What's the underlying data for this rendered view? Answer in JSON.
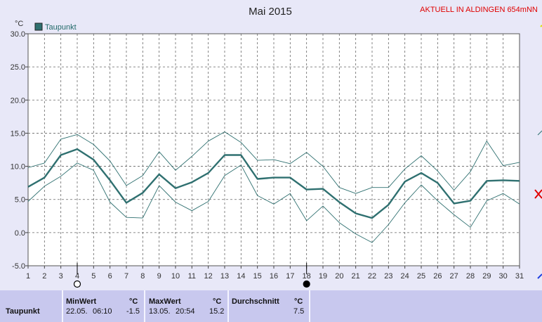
{
  "chart_data": {
    "type": "line",
    "title": "Mai 2015",
    "station": "AKTUELL IN ALDINGEN 654mNN",
    "ylabel": "°C",
    "ylim": [
      -5,
      30
    ],
    "yticks": [
      "30.0",
      "25.0",
      "20.0",
      "15.0",
      "10.0",
      "5.0",
      "0.0",
      "-5.0"
    ],
    "x": [
      1,
      2,
      3,
      4,
      5,
      6,
      7,
      8,
      9,
      10,
      11,
      12,
      13,
      14,
      15,
      16,
      17,
      18,
      19,
      20,
      21,
      22,
      23,
      24,
      25,
      26,
      27,
      28,
      29,
      30,
      31
    ],
    "grid": true,
    "legend_position": "top-left",
    "series": [
      {
        "name": "Taupunkt",
        "role": "mean",
        "color": "#2f7070",
        "values": [
          6.9,
          8.3,
          11.7,
          12.6,
          11.0,
          7.9,
          4.5,
          6.0,
          8.8,
          6.7,
          7.6,
          9.0,
          11.7,
          11.7,
          8.1,
          8.3,
          8.3,
          6.5,
          6.6,
          4.6,
          2.9,
          2.2,
          4.2,
          7.7,
          9.0,
          7.5,
          4.4,
          4.8,
          7.8,
          7.9,
          7.8
        ]
      },
      {
        "role": "max",
        "color": "#2f7070",
        "values": [
          9.8,
          10.5,
          14.1,
          14.8,
          13.3,
          10.8,
          7.1,
          8.6,
          12.2,
          9.4,
          11.5,
          13.8,
          15.2,
          13.6,
          10.9,
          11.0,
          10.4,
          12.1,
          10.0,
          6.8,
          5.9,
          6.8,
          6.8,
          9.6,
          11.6,
          9.3,
          6.4,
          9.2,
          13.8,
          10.1,
          10.6
        ]
      },
      {
        "role": "min",
        "color": "#2f7070",
        "values": [
          4.7,
          7.0,
          8.5,
          10.5,
          9.4,
          4.6,
          2.3,
          2.2,
          7.1,
          4.6,
          3.3,
          4.7,
          8.6,
          10.2,
          5.6,
          4.3,
          5.9,
          1.8,
          4.0,
          1.5,
          -0.2,
          -1.5,
          1.2,
          4.5,
          7.2,
          4.8,
          2.7,
          0.8,
          4.8,
          5.9,
          4.3
        ]
      }
    ],
    "moon_markers": [
      {
        "day": 4,
        "phase": "full"
      },
      {
        "day": 18,
        "phase": "new"
      }
    ]
  },
  "stats": {
    "row_label": "Taupunkt",
    "min_label": "MinWert",
    "max_label": "MaxWert",
    "avg_label": "Durchschnitt",
    "unit": "°C",
    "min_date": "22.05.",
    "min_time": "06:10",
    "min_value": "-1.5",
    "max_date": "13.05.",
    "max_time": "20:54",
    "max_value": "15.2",
    "avg_value": "7.5"
  }
}
